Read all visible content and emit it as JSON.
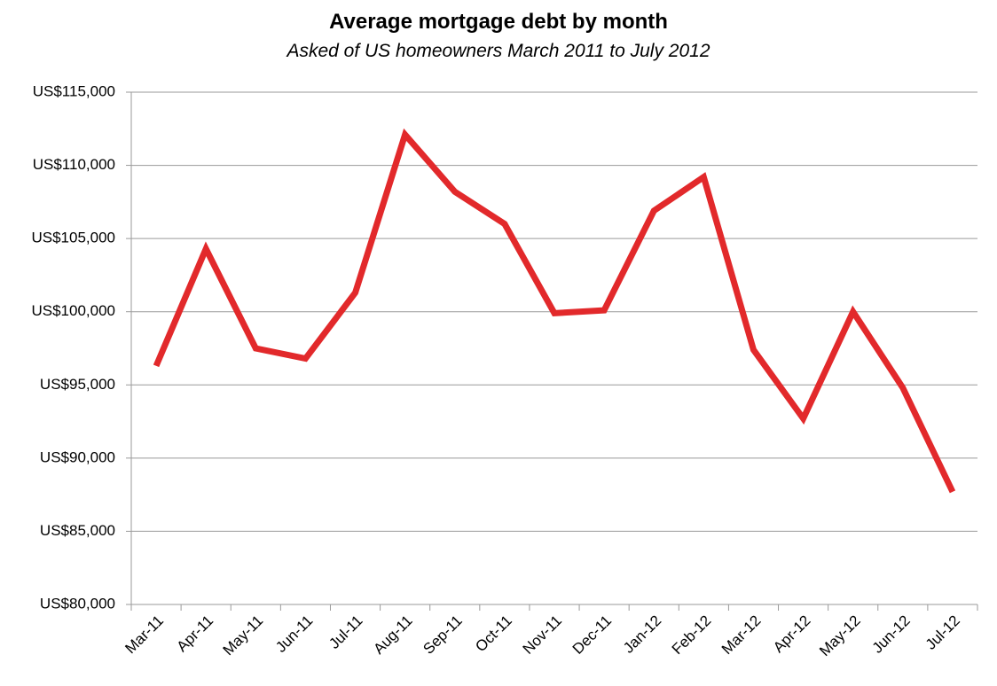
{
  "chart_data": {
    "type": "line",
    "title": "Average mortgage debt by month",
    "subtitle": "Asked of US homeowners March 2011 to July 2012",
    "categories": [
      "Mar-11",
      "Apr-11",
      "May-11",
      "Jun-11",
      "Jul-11",
      "Aug-11",
      "Sep-11",
      "Oct-11",
      "Nov-11",
      "Dec-11",
      "Jan-12",
      "Feb-12",
      "Mar-12",
      "Apr-12",
      "May-12",
      "Jun-12",
      "Jul-12"
    ],
    "values": [
      96300,
      104300,
      97500,
      96800,
      101300,
      112100,
      108200,
      106000,
      99900,
      100100,
      106900,
      109200,
      97400,
      92700,
      100000,
      94800,
      87700
    ],
    "color": "#e2292b",
    "ylim": [
      80000,
      115000
    ],
    "yticks": [
      {
        "value": 80000,
        "label": "US$80,000"
      },
      {
        "value": 85000,
        "label": "US$85,000"
      },
      {
        "value": 90000,
        "label": "US$90,000"
      },
      {
        "value": 95000,
        "label": "US$95,000"
      },
      {
        "value": 100000,
        "label": "US$100,000"
      },
      {
        "value": 105000,
        "label": "US$105,000"
      },
      {
        "value": 110000,
        "label": "US$110,000"
      },
      {
        "value": 115000,
        "label": "US$115,000"
      }
    ],
    "grid": true
  }
}
